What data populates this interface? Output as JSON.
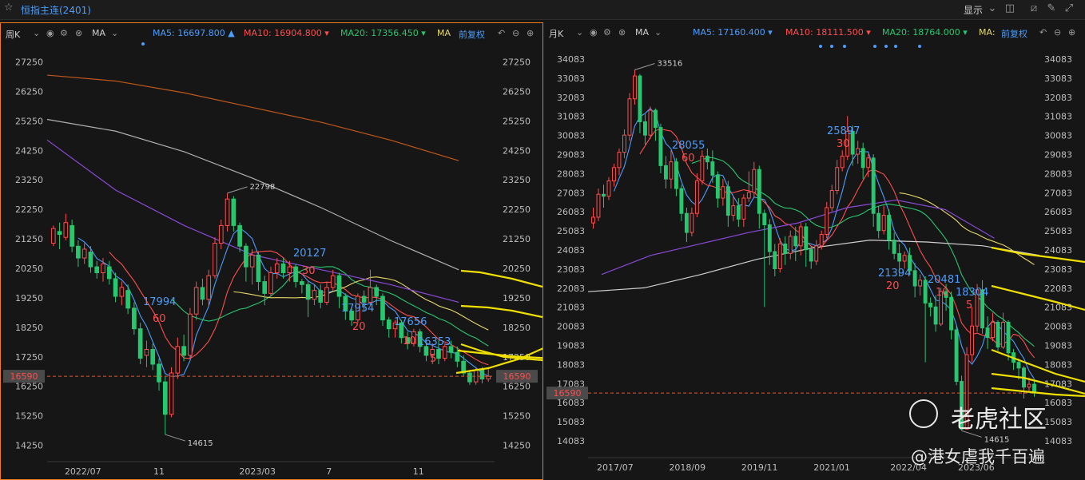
{
  "app": {
    "title": "恒指主连(2401)",
    "display_label": "显示",
    "icons": [
      "star-icon",
      "chevron-down-icon",
      "layout-icon",
      "draw-icon",
      "pen-icon",
      "fullscreen-icon"
    ]
  },
  "colors": {
    "ma5": "#4a9eff",
    "ma10": "#ff4d4d",
    "ma20": "#28c76f",
    "ma": "#e6d96a",
    "up": "#ff4d4d",
    "down": "#28c76f",
    "accent": "#f07c1a",
    "price_line": "#e05a2b",
    "yellow_draw": "#f0e000",
    "purple": "#8a4ad8",
    "grey": "#9a9a9a",
    "orange_ma": "#c0581a"
  },
  "weekly": {
    "period_label": "周K",
    "indicator_label": "MA",
    "ma5_label": "MA5:",
    "ma5_value": "16697.800",
    "ma10_label": "MA10:",
    "ma10_value": "16904.800",
    "ma20_label": "MA20:",
    "ma20_value": "17356.450",
    "ma_label": "MA",
    "adjust_label": "前复权",
    "current_price_tag": "16590"
  },
  "monthly": {
    "period_label": "月K",
    "indicator_label": "MA",
    "ma5_label": "MA5:",
    "ma5_value": "17160.400",
    "ma10_label": "MA10:",
    "ma10_value": "18111.500",
    "ma20_label": "MA20:",
    "ma20_value": "18764.000",
    "ma_label": "MA:",
    "adjust_label": "前复权",
    "current_price_tag": "16590"
  },
  "watermark": {
    "brand": "老虎社区",
    "user": "@港女虐我千百遍"
  },
  "chart_data": [
    {
      "type": "candlestick",
      "title": "周K",
      "ylim": [
        13750,
        27750
      ],
      "yticks": [
        "27250",
        "26250",
        "25250",
        "24250",
        "23250",
        "22250",
        "21250",
        "20250",
        "19250",
        "18250",
        "17250",
        "16250",
        "15250",
        "14250"
      ],
      "xticks": [
        "2022/07",
        "11",
        "2023/03",
        "7",
        "11"
      ],
      "ma_values": {
        "MA5": 16697.8,
        "MA10": 16904.8,
        "MA20": 17356.45
      },
      "current_price": 16590,
      "annotations": [
        {
          "text": "22798",
          "kind": "high"
        },
        {
          "text": "14615",
          "kind": "low"
        },
        {
          "text": "17994",
          "kind": "blue"
        },
        {
          "text": "60",
          "kind": "red"
        },
        {
          "text": "20127",
          "kind": "blue"
        },
        {
          "text": "30",
          "kind": "red"
        },
        {
          "text": "17954",
          "kind": "blue"
        },
        {
          "text": "20",
          "kind": "red"
        },
        {
          "text": "17656",
          "kind": "blue"
        },
        {
          "text": "10",
          "kind": "red"
        },
        {
          "text": "16353",
          "kind": "blue"
        },
        {
          "text": "5",
          "kind": "red"
        }
      ],
      "candles": [
        [
          21100,
          21600,
          21000,
          21700
        ],
        [
          21500,
          21400,
          20900,
          21800
        ],
        [
          21300,
          21800,
          21200,
          22100
        ],
        [
          21700,
          21000,
          20800,
          21900
        ],
        [
          21000,
          20600,
          20300,
          21200
        ],
        [
          20600,
          20900,
          20400,
          21100
        ],
        [
          20800,
          20300,
          20100,
          21000
        ],
        [
          20300,
          20100,
          19900,
          20500
        ],
        [
          20100,
          20400,
          19800,
          20600
        ],
        [
          20300,
          19900,
          19700,
          20500
        ],
        [
          19900,
          19300,
          19100,
          20100
        ],
        [
          19300,
          19600,
          19000,
          19800
        ],
        [
          19500,
          18900,
          18700,
          19700
        ],
        [
          18900,
          18200,
          18000,
          19100
        ],
        [
          18200,
          17200,
          17000,
          18400
        ],
        [
          17300,
          17500,
          16900,
          17800
        ],
        [
          17500,
          17000,
          16800,
          17700
        ],
        [
          17000,
          16400,
          16100,
          17200
        ],
        [
          16400,
          15300,
          14615,
          16600
        ],
        [
          15300,
          16700,
          15200,
          16900
        ],
        [
          16700,
          17600,
          16500,
          17900
        ],
        [
          17600,
          17300,
          17100,
          18000
        ],
        [
          17300,
          18700,
          17200,
          18900
        ],
        [
          18700,
          19600,
          18500,
          19800
        ],
        [
          19600,
          19200,
          19000,
          19900
        ],
        [
          19200,
          20000,
          19000,
          20200
        ],
        [
          20000,
          21100,
          19900,
          21300
        ],
        [
          21100,
          21700,
          20900,
          21900
        ],
        [
          21700,
          22600,
          21500,
          22798
        ],
        [
          22600,
          21700,
          21500,
          22700
        ],
        [
          21700,
          21000,
          20800,
          21800
        ],
        [
          21000,
          20300,
          19800,
          21100
        ],
        [
          20300,
          20700,
          19700,
          20900
        ],
        [
          20700,
          19800,
          19500,
          20800
        ],
        [
          19800,
          19400,
          19000,
          20000
        ],
        [
          19400,
          20100,
          19300,
          20300
        ],
        [
          20100,
          20400,
          19900,
          20600
        ],
        [
          20400,
          20100,
          19900,
          20600
        ],
        [
          20100,
          20300,
          19800,
          20500
        ],
        [
          20300,
          19800,
          19600,
          20400
        ],
        [
          19800,
          19700,
          19400,
          19900
        ],
        [
          19700,
          19200,
          18600,
          19800
        ],
        [
          19200,
          19500,
          19000,
          19700
        ],
        [
          19500,
          19100,
          18900,
          19700
        ],
        [
          19100,
          19600,
          19000,
          19800
        ],
        [
          19600,
          20000,
          19500,
          20200
        ],
        [
          20000,
          19300,
          18900,
          20100
        ],
        [
          19300,
          18800,
          18500,
          19400
        ],
        [
          18800,
          18500,
          18300,
          18900
        ],
        [
          18500,
          19300,
          18400,
          19400
        ],
        [
          19300,
          19100,
          18800,
          19500
        ],
        [
          19100,
          19600,
          19000,
          20200
        ],
        [
          19600,
          19300,
          19000,
          19700
        ],
        [
          19300,
          18500,
          18300,
          19400
        ],
        [
          18500,
          18200,
          17900,
          18600
        ],
        [
          18200,
          18400,
          17900,
          18500
        ],
        [
          18400,
          17900,
          17700,
          18500
        ],
        [
          17900,
          17700,
          17500,
          18100
        ],
        [
          17700,
          18100,
          17600,
          18200
        ],
        [
          18100,
          17600,
          17400,
          18200
        ],
        [
          17600,
          17300,
          17100,
          17700
        ],
        [
          17300,
          17500,
          17000,
          17700
        ],
        [
          17500,
          17200,
          17000,
          17800
        ],
        [
          17200,
          17600,
          17100,
          17700
        ],
        [
          17600,
          17400,
          17200,
          17800
        ],
        [
          17400,
          17100,
          16900,
          17600
        ],
        [
          17100,
          16700,
          16600,
          17300
        ],
        [
          16700,
          16400,
          16300,
          16800
        ],
        [
          16400,
          16800,
          16300,
          16900
        ],
        [
          16800,
          16500,
          16350,
          16900
        ],
        [
          16500,
          16590,
          16400,
          16900
        ]
      ]
    },
    {
      "type": "candlestick",
      "title": "月K",
      "ylim": [
        13583,
        34583
      ],
      "yticks": [
        "34083",
        "33083",
        "32083",
        "31083",
        "30083",
        "29083",
        "28083",
        "27083",
        "26083",
        "25083",
        "24083",
        "23083",
        "22083",
        "21083",
        "20083",
        "19083",
        "18083",
        "17083",
        "16083",
        "15083",
        "14083"
      ],
      "xticks": [
        "2017/07",
        "2018/09",
        "2019/11",
        "2021/01",
        "2022/04",
        "2023/06"
      ],
      "ma_values": {
        "MA5": 17160.4,
        "MA10": 18111.5,
        "MA20": 18764.0
      },
      "current_price": 16590,
      "annotations": [
        {
          "text": "33516",
          "kind": "high"
        },
        {
          "text": "14615",
          "kind": "low"
        },
        {
          "text": "28055",
          "kind": "blue"
        },
        {
          "text": "60",
          "kind": "red"
        },
        {
          "text": "25897",
          "kind": "blue"
        },
        {
          "text": "30",
          "kind": "red"
        },
        {
          "text": "21394",
          "kind": "blue"
        },
        {
          "text": "20",
          "kind": "red"
        },
        {
          "text": "20481",
          "kind": "blue"
        },
        {
          "text": "10",
          "kind": "red"
        },
        {
          "text": "18304",
          "kind": "blue"
        },
        {
          "text": "5",
          "kind": "red"
        }
      ],
      "candles": [
        [
          25500,
          25800,
          25200,
          26300
        ],
        [
          25800,
          27000,
          25600,
          27300
        ],
        [
          27000,
          26900,
          26300,
          27500
        ],
        [
          26900,
          27700,
          26700,
          27900
        ],
        [
          27700,
          28400,
          27400,
          28600
        ],
        [
          28400,
          29200,
          28000,
          29400
        ],
        [
          29200,
          30100,
          28900,
          30400
        ],
        [
          30100,
          32000,
          29800,
          32300
        ],
        [
          32000,
          33200,
          31700,
          33516
        ],
        [
          33200,
          30800,
          30200,
          33300
        ],
        [
          30800,
          30100,
          29600,
          31200
        ],
        [
          30100,
          31400,
          29900,
          31600
        ],
        [
          31400,
          30500,
          29800,
          31500
        ],
        [
          30500,
          28500,
          28100,
          30700
        ],
        [
          28500,
          27800,
          27300,
          29000
        ],
        [
          27800,
          28700,
          27300,
          29300
        ],
        [
          28700,
          27300,
          26900,
          28900
        ],
        [
          27300,
          26000,
          25600,
          27500
        ],
        [
          26000,
          25000,
          24500,
          26300
        ],
        [
          25000,
          26000,
          24800,
          26300
        ],
        [
          26000,
          27700,
          25800,
          28100
        ],
        [
          27700,
          29000,
          27500,
          29300
        ],
        [
          29000,
          28700,
          28300,
          29400
        ],
        [
          28700,
          28000,
          27600,
          29300
        ],
        [
          28000,
          26800,
          26300,
          28200
        ],
        [
          26800,
          27400,
          26400,
          27800
        ],
        [
          27400,
          25900,
          25300,
          27700
        ],
        [
          25900,
          26400,
          25600,
          26900
        ],
        [
          26400,
          25700,
          25300,
          26800
        ],
        [
          25700,
          26800,
          25300,
          27000
        ],
        [
          26800,
          27100,
          26600,
          28200
        ],
        [
          27100,
          28300,
          26800,
          28700
        ],
        [
          28300,
          26000,
          25200,
          28500
        ],
        [
          26000,
          25400,
          21100,
          26200
        ],
        [
          25400,
          24000,
          23300,
          25700
        ],
        [
          24000,
          23100,
          22700,
          24400
        ],
        [
          23100,
          24400,
          22900,
          24700
        ],
        [
          24400,
          23900,
          23300,
          24800
        ],
        [
          23900,
          24800,
          23600,
          25100
        ],
        [
          24800,
          24300,
          23500,
          25300
        ],
        [
          24300,
          25300,
          23800,
          25500
        ],
        [
          25300,
          24100,
          23200,
          25500
        ],
        [
          24100,
          23500,
          23100,
          24300
        ],
        [
          23500,
          24300,
          23300,
          24600
        ],
        [
          24300,
          24900,
          24100,
          25100
        ],
        [
          24900,
          26300,
          24700,
          26600
        ],
        [
          26300,
          27200,
          26100,
          27500
        ],
        [
          27200,
          28400,
          27000,
          28800
        ],
        [
          28400,
          29000,
          28200,
          29300
        ],
        [
          29000,
          30300,
          28800,
          31100
        ],
        [
          30300,
          29100,
          28500,
          30600
        ],
        [
          29100,
          29400,
          28600,
          29800
        ],
        [
          29400,
          28400,
          27800,
          29700
        ],
        [
          28400,
          28900,
          27900,
          29100
        ],
        [
          28900,
          26000,
          25300,
          29100
        ],
        [
          26000,
          25100,
          24700,
          26400
        ],
        [
          25100,
          25900,
          24900,
          26400
        ],
        [
          25900,
          24600,
          24100,
          26200
        ],
        [
          24600,
          23900,
          23600,
          25000
        ],
        [
          23900,
          23500,
          22700,
          24400
        ],
        [
          23500,
          23800,
          23100,
          24000
        ],
        [
          23800,
          23000,
          22800,
          24200
        ],
        [
          23000,
          22200,
          21600,
          23400
        ],
        [
          22200,
          22500,
          21700,
          22800
        ],
        [
          22500,
          21300,
          18200,
          22700
        ],
        [
          21300,
          21100,
          20600,
          21600
        ],
        [
          21100,
          20200,
          19800,
          21700
        ],
        [
          20200,
          21900,
          20100,
          22100
        ],
        [
          21900,
          21600,
          20900,
          22300
        ],
        [
          21600,
          19900,
          19400,
          21900
        ],
        [
          19900,
          17200,
          17000,
          20100
        ],
        [
          17200,
          14700,
          14615,
          17500
        ],
        [
          14700,
          18600,
          14800,
          19000
        ],
        [
          18600,
          20100,
          18200,
          21100
        ],
        [
          20100,
          22000,
          19800,
          22300
        ],
        [
          22000,
          20000,
          19700,
          22500
        ],
        [
          20000,
          19500,
          18900,
          20600
        ],
        [
          19500,
          20300,
          19300,
          20800
        ],
        [
          20300,
          19000,
          18800,
          20400
        ],
        [
          19000,
          20300,
          18900,
          20800
        ],
        [
          20300,
          18700,
          18300,
          20400
        ],
        [
          18700,
          18200,
          17800,
          18900
        ],
        [
          18200,
          17900,
          17300,
          18400
        ],
        [
          17900,
          16900,
          16300,
          18000
        ],
        [
          16900,
          17050,
          16700,
          17400
        ],
        [
          17050,
          16590,
          16400,
          17300
        ]
      ]
    }
  ]
}
